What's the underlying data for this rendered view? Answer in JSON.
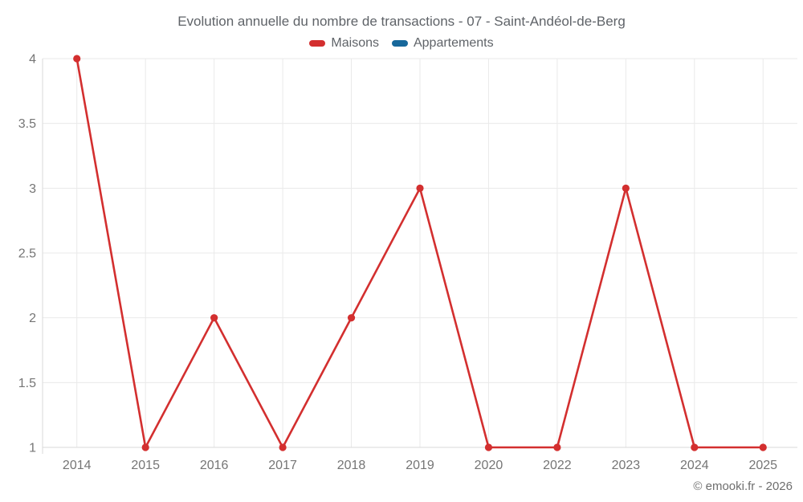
{
  "title": "Evolution annuelle du nombre de transactions - 07 - Saint-Andéol-de-Berg",
  "legend": [
    {
      "label": "Maisons",
      "color": "#d32f2f"
    },
    {
      "label": "Appartements",
      "color": "#17689b"
    }
  ],
  "watermark": "© emooki.fr - 2026",
  "chart_data": {
    "type": "line",
    "title": "Evolution annuelle du nombre de transactions - 07 - Saint-Andéol-de-Berg",
    "categories": [
      "2014",
      "2015",
      "2016",
      "2017",
      "2018",
      "2019",
      "2020",
      "2022",
      "2023",
      "2024",
      "2025"
    ],
    "series": [
      {
        "name": "Maisons",
        "color": "#d32f2f",
        "values": [
          4,
          1,
          2,
          1,
          2,
          3,
          1,
          1,
          3,
          1,
          1
        ]
      },
      {
        "name": "Appartements",
        "color": "#17689b",
        "values": []
      }
    ],
    "xlabel": "",
    "ylabel": "",
    "ylim": [
      1,
      4
    ],
    "yticks": [
      1,
      1.5,
      2,
      2.5,
      3,
      3.5,
      4
    ],
    "grid": true,
    "legend_position": "top"
  }
}
